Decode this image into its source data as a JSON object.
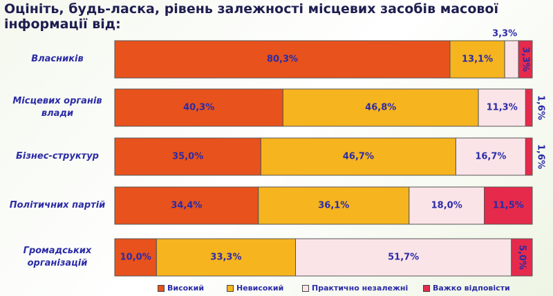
{
  "chart_data": {
    "type": "stacked-bar-horizontal",
    "title": "Оцініть, будь-ласка, рівень залежності місцевих засобів масової інформації від:",
    "categories": [
      "Власників",
      "Місцевих органів влади",
      "Бізнес-структур",
      "Політичних партій",
      "Громадських організацій"
    ],
    "series": [
      {
        "name": "Високий",
        "color": "#e8521c",
        "values": [
          80.3,
          40.3,
          35.0,
          34.4,
          10.0
        ],
        "value_labels": [
          "80,3%",
          "40,3%",
          "35,0%",
          "34,4%",
          "10,0%"
        ]
      },
      {
        "name": "Невисокий",
        "color": "#f6b41e",
        "values": [
          13.1,
          46.8,
          46.7,
          36.1,
          33.3
        ],
        "value_labels": [
          "13,1%",
          "46,8%",
          "46,7%",
          "36,1%",
          "33,3%"
        ]
      },
      {
        "name": "Практично незалежні",
        "color": "#fbe4e8",
        "values": [
          3.3,
          11.3,
          16.7,
          18.0,
          51.7
        ],
        "value_labels": [
          "3,3%",
          "11,3%",
          "16,7%",
          "18,0%",
          "51,7%"
        ]
      },
      {
        "name": "Важко відповісти",
        "color": "#e62a4c",
        "values": [
          3.3,
          1.6,
          1.6,
          11.5,
          5.0
        ],
        "value_labels": [
          "3,3%",
          "1,6%",
          "1,6%",
          "11,5%",
          "5,0%"
        ]
      }
    ],
    "legend": "bottom"
  }
}
